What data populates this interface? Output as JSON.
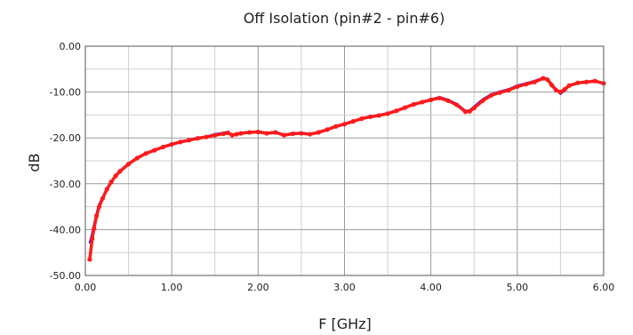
{
  "chart_data": {
    "type": "line",
    "title": "Off Isolation (pin#2 - pin#6)",
    "xlabel": "F [GHz]",
    "ylabel": "dB",
    "xlim": [
      0,
      6
    ],
    "ylim": [
      -50,
      0
    ],
    "x_ticks": [
      "0.00",
      "1.00",
      "2.00",
      "3.00",
      "4.00",
      "5.00",
      "6.00"
    ],
    "y_ticks": [
      "0.00",
      "-10.00",
      "-20.00",
      "-30.00",
      "-40.00",
      "-50.00"
    ],
    "grid": true,
    "series": [
      {
        "color": "#1a1aff",
        "marker": "line",
        "x": [
          0.05,
          0.08,
          0.1,
          0.13,
          0.16,
          0.2,
          0.25,
          0.3,
          0.35,
          0.4,
          0.5,
          0.6,
          0.7,
          0.8,
          0.9,
          1.0,
          1.1,
          1.2,
          1.3,
          1.4,
          1.5,
          1.6,
          1.65,
          1.7,
          1.75,
          1.8,
          1.9,
          2.0,
          2.1,
          2.2,
          2.3,
          2.4,
          2.5,
          2.6,
          2.7,
          2.8,
          2.9,
          3.0,
          3.1,
          3.2,
          3.3,
          3.4,
          3.5,
          3.6,
          3.7,
          3.8,
          3.9,
          4.0,
          4.1,
          4.2,
          4.3,
          4.4,
          4.45,
          4.5,
          4.6,
          4.7,
          4.8,
          4.9,
          5.0,
          5.1,
          5.2,
          5.3,
          5.35,
          5.4,
          5.45,
          5.5,
          5.55,
          5.6,
          5.7,
          5.8,
          5.9,
          6.0
        ],
        "y": [
          -43.0,
          -40.8,
          -39.0,
          -36.5,
          -34.5,
          -33.0,
          -31.0,
          -29.5,
          -28.2,
          -27.2,
          -25.6,
          -24.3,
          -23.3,
          -22.6,
          -21.9,
          -21.3,
          -20.8,
          -20.4,
          -20.0,
          -19.7,
          -19.2,
          -18.9,
          -18.7,
          -19.3,
          -19.1,
          -18.9,
          -18.7,
          -18.6,
          -18.9,
          -18.7,
          -19.3,
          -19.0,
          -18.9,
          -19.1,
          -18.7,
          -18.1,
          -17.4,
          -16.9,
          -16.3,
          -15.7,
          -15.3,
          -15.0,
          -14.6,
          -14.0,
          -13.3,
          -12.6,
          -12.1,
          -11.6,
          -11.1,
          -11.7,
          -12.6,
          -14.1,
          -14.0,
          -13.2,
          -11.6,
          -10.5,
          -9.9,
          -9.4,
          -8.6,
          -8.1,
          -7.6,
          -6.9,
          -7.1,
          -8.3,
          -9.4,
          -10.4,
          -9.6,
          -8.7,
          -8.1,
          -7.9,
          -7.7,
          -8.2
        ]
      },
      {
        "color": "#ff1a1a",
        "marker": "dots",
        "x": [
          0.05,
          0.08,
          0.1,
          0.13,
          0.16,
          0.2,
          0.25,
          0.3,
          0.35,
          0.4,
          0.5,
          0.6,
          0.7,
          0.8,
          0.9,
          1.0,
          1.1,
          1.2,
          1.3,
          1.4,
          1.5,
          1.6,
          1.65,
          1.7,
          1.75,
          1.8,
          1.9,
          2.0,
          2.1,
          2.2,
          2.3,
          2.4,
          2.5,
          2.6,
          2.7,
          2.8,
          2.9,
          3.0,
          3.1,
          3.2,
          3.3,
          3.4,
          3.5,
          3.6,
          3.7,
          3.8,
          3.9,
          4.0,
          4.1,
          4.2,
          4.3,
          4.4,
          4.45,
          4.5,
          4.6,
          4.7,
          4.8,
          4.9,
          5.0,
          5.1,
          5.2,
          5.3,
          5.35,
          5.4,
          5.45,
          5.5,
          5.55,
          5.6,
          5.7,
          5.8,
          5.9,
          6.0
        ],
        "y": [
          -46.5,
          -42.0,
          -39.8,
          -37.0,
          -35.0,
          -33.2,
          -31.2,
          -29.6,
          -28.3,
          -27.3,
          -25.7,
          -24.4,
          -23.4,
          -22.7,
          -22.0,
          -21.4,
          -20.9,
          -20.5,
          -20.1,
          -19.8,
          -19.4,
          -19.1,
          -18.9,
          -19.4,
          -19.2,
          -19.0,
          -18.8,
          -18.7,
          -19.0,
          -18.8,
          -19.4,
          -19.1,
          -19.0,
          -19.2,
          -18.8,
          -18.2,
          -17.5,
          -17.0,
          -16.4,
          -15.8,
          -15.4,
          -15.1,
          -14.7,
          -14.1,
          -13.4,
          -12.7,
          -12.2,
          -11.7,
          -11.3,
          -11.9,
          -12.8,
          -14.3,
          -14.2,
          -13.5,
          -11.9,
          -10.7,
          -10.1,
          -9.6,
          -8.8,
          -8.3,
          -7.8,
          -7.0,
          -7.3,
          -8.5,
          -9.6,
          -10.0,
          -9.4,
          -8.6,
          -8.0,
          -7.8,
          -7.6,
          -8.1
        ]
      }
    ]
  }
}
